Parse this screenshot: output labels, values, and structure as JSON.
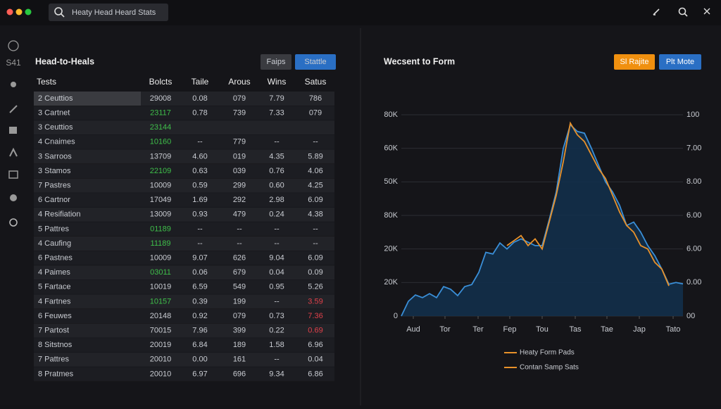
{
  "search": "Heaty Head Heard Stats",
  "sidebar": {
    "label": "S41"
  },
  "table": {
    "title": "Head-to-Heals",
    "buttons": [
      "Faips",
      "Stattle"
    ],
    "columns": [
      "Tests",
      "Bolcts",
      "Taile",
      "Arous",
      "Wins",
      "Satus"
    ],
    "accent_colors": {
      "green": "#3fbf4a",
      "red": "#e0404a"
    },
    "rows": [
      {
        "cells": [
          "2  Ceuttios",
          "29008",
          "0.08",
          "079",
          "7.79",
          "786"
        ],
        "selected": true
      },
      {
        "cells": [
          "3  Cartnet",
          "23117",
          "0.78",
          "739",
          "7.33",
          "079"
        ],
        "tone": "green"
      },
      {
        "cells": [
          "3  Ceuttios",
          "23144"
        ],
        "tone": "green"
      },
      {
        "cells": [
          "4  Cnaimes",
          "10160",
          "--",
          "779",
          "--",
          "--"
        ],
        "tone": "green"
      },
      {
        "cells": [
          "3  Sarroos",
          "13709",
          "4.60",
          "019",
          "4.35",
          "5.89"
        ]
      },
      {
        "cells": [
          "3  Stamos",
          "22109",
          "0.63",
          "039",
          "0.76",
          "4.06"
        ],
        "tone": "green"
      },
      {
        "cells": [
          "7  Pastres",
          "10009",
          "0.59",
          "299",
          "0.60",
          "4.25"
        ]
      },
      {
        "cells": [
          "6  Cartnor",
          "17049",
          "1.69",
          "292",
          "2.98",
          "6.09"
        ]
      },
      {
        "cells": [
          "4  Resifiation",
          "13009",
          "0.93",
          "479",
          "0.24",
          "4.38"
        ]
      },
      {
        "cells": [
          "5  Pattres",
          "01189",
          "--",
          "--",
          "--",
          "--"
        ],
        "tone": "green"
      },
      {
        "cells": [
          "4  Caufing",
          "11189",
          "--",
          "--",
          "--",
          "--"
        ],
        "tone": "green"
      },
      {
        "cells": [
          "6  Pastnes",
          "10009",
          "9.07",
          "626",
          "9.04",
          "6.09"
        ]
      },
      {
        "cells": [
          "4  Paimes",
          "03011",
          "0.06",
          "679",
          "0.04",
          "0.09"
        ],
        "tone": "green"
      },
      {
        "cells": [
          "5  Fartace",
          "10019",
          "6.59",
          "549",
          "0.95",
          "5.26"
        ]
      },
      {
        "cells": [
          "4  Fartnes",
          "10157",
          "0.39",
          "199",
          "--",
          "3.59"
        ],
        "tone": "green",
        "status_tone": "red"
      },
      {
        "cells": [
          "6  Feuwes",
          "20148",
          "0.92",
          "079",
          "0.73",
          "7.36"
        ],
        "status_tone": "red"
      },
      {
        "cells": [
          "7  Partost",
          "70015",
          "7.96",
          "399",
          "0.22",
          "0.69"
        ],
        "status_tone": "red"
      },
      {
        "cells": [
          "8  Sitstnos",
          "20019",
          "6.84",
          "189",
          "1.58",
          "6.96"
        ]
      },
      {
        "cells": [
          "7  Pattres",
          "20010",
          "0.00",
          "161",
          "--",
          "0.04"
        ]
      },
      {
        "cells": [
          "8  Pratmes",
          "20010",
          "6.97",
          "696",
          "9.34",
          "6.86"
        ]
      }
    ]
  },
  "chart_data": {
    "type": "line",
    "title": "Wecsent to Form",
    "buttons": [
      {
        "text": "Sl Rajite",
        "color": "#f0900f"
      },
      {
        "text": "Plt Mote",
        "color": "#2a6fc4"
      }
    ],
    "x": [
      0,
      1,
      2,
      3,
      4,
      5,
      6,
      7,
      8,
      9,
      10,
      11,
      12,
      13,
      14,
      15,
      16,
      17,
      18,
      19,
      20,
      21,
      22,
      23,
      24,
      25,
      26,
      27,
      28,
      29,
      30,
      31,
      32,
      33,
      34,
      35,
      36,
      37,
      38,
      39,
      40
    ],
    "xlim": [
      0,
      40
    ],
    "xticks": [
      {
        "value": 1.7,
        "label": "Aud"
      },
      {
        "value": 6.2,
        "label": "Tor"
      },
      {
        "value": 10.9,
        "label": "Ter"
      },
      {
        "value": 15.4,
        "label": "Fep"
      },
      {
        "value": 20,
        "label": "Tou"
      },
      {
        "value": 24.7,
        "label": "Tas"
      },
      {
        "value": 29.2,
        "label": "Tae"
      },
      {
        "value": 33.8,
        "label": "Jap"
      },
      {
        "value": 38.6,
        "label": "Tato"
      }
    ],
    "ylim": [
      0,
      60
    ],
    "yticks": [
      0,
      {
        "value": 10,
        "label": "20K"
      },
      {
        "value": 20,
        "label": "20K"
      },
      {
        "value": 30,
        "label": "80K"
      },
      {
        "value": 40,
        "label": "50K"
      },
      {
        "value": 50,
        "label": "60K"
      },
      {
        "value": 60,
        "label": "80K"
      }
    ],
    "y2lim": [
      0,
      6
    ],
    "y2ticks": [
      {
        "value": 0,
        "label": "00"
      },
      {
        "value": 1,
        "label": "0.00"
      },
      {
        "value": 2,
        "label": "6.00"
      },
      {
        "value": 3,
        "label": "6.00"
      },
      {
        "value": 4,
        "label": "8.00"
      },
      {
        "value": 5,
        "label": "7.00"
      },
      {
        "value": 6,
        "label": "100"
      }
    ],
    "grid": true,
    "legend_color": "#e8912a",
    "series": [
      {
        "name": "Heaty Form Pads",
        "color": "#3a8fd8",
        "area_color": "#12304e",
        "values": [
          0,
          4.4,
          6.3,
          5.5,
          6.7,
          5.5,
          8.8,
          8,
          6.1,
          8.8,
          9.4,
          13,
          19,
          18.5,
          21.8,
          20,
          22,
          23,
          22,
          21,
          21,
          28.7,
          37,
          50,
          57,
          55,
          54.5,
          50,
          45,
          40,
          37,
          33,
          27,
          28,
          25,
          21,
          18,
          14,
          9.5,
          10,
          9.6
        ]
      },
      {
        "name": "Contan Samp Sats",
        "color": "#e8912a",
        "values": [
          null,
          null,
          null,
          null,
          null,
          null,
          null,
          null,
          null,
          null,
          null,
          null,
          null,
          null,
          null,
          21,
          22.5,
          24,
          21,
          23,
          20,
          28,
          36,
          46,
          57.5,
          54,
          52,
          48,
          44,
          41,
          36,
          31,
          27,
          25,
          21,
          20,
          16,
          14,
          9,
          null,
          null
        ]
      }
    ]
  }
}
